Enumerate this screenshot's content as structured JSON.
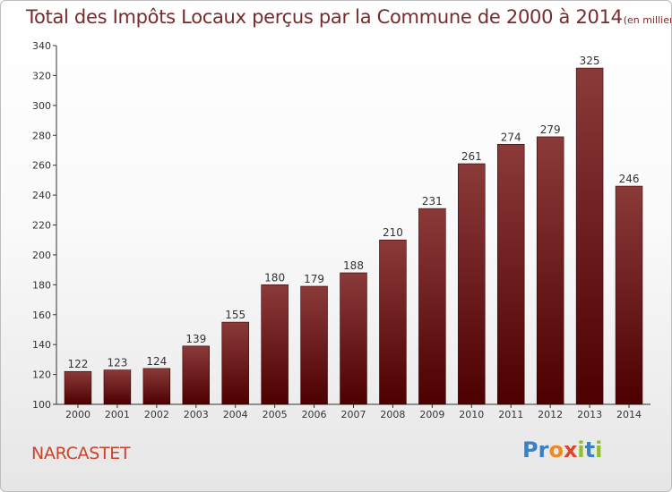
{
  "title": "Total des Impôts Locaux perçus par la Commune de 2000 à 2014",
  "subtitle": "(en milliers d'€)",
  "commune": "NARCASTET",
  "brand": {
    "letters": [
      "P",
      "r",
      "o",
      "x",
      "i",
      "t",
      "i"
    ],
    "colors": [
      "#3b7fc4",
      "#3b7fc4",
      "#f08a1c",
      "#e0452a",
      "#8fbf2a",
      "#3b7fc4",
      "#8fbf2a"
    ]
  },
  "colors": {
    "bar_top": "#8b3a3a",
    "bar_bottom": "#4d0000",
    "title": "#7a2a2a",
    "commune": "#c8442a"
  },
  "chart_data": {
    "type": "bar",
    "categories": [
      "2000",
      "2001",
      "2002",
      "2003",
      "2004",
      "2005",
      "2006",
      "2007",
      "2008",
      "2009",
      "2010",
      "2011",
      "2012",
      "2013",
      "2014"
    ],
    "values": [
      122,
      123,
      124,
      139,
      155,
      180,
      179,
      188,
      210,
      231,
      261,
      274,
      279,
      325,
      246
    ],
    "ylim": [
      100,
      340
    ],
    "yticks": [
      100,
      120,
      140,
      160,
      180,
      200,
      220,
      240,
      260,
      280,
      300,
      320,
      340
    ],
    "grid": false,
    "title": "Total des Impôts Locaux perçus par la Commune de 2000 à 2014",
    "xlabel": "",
    "ylabel": ""
  }
}
